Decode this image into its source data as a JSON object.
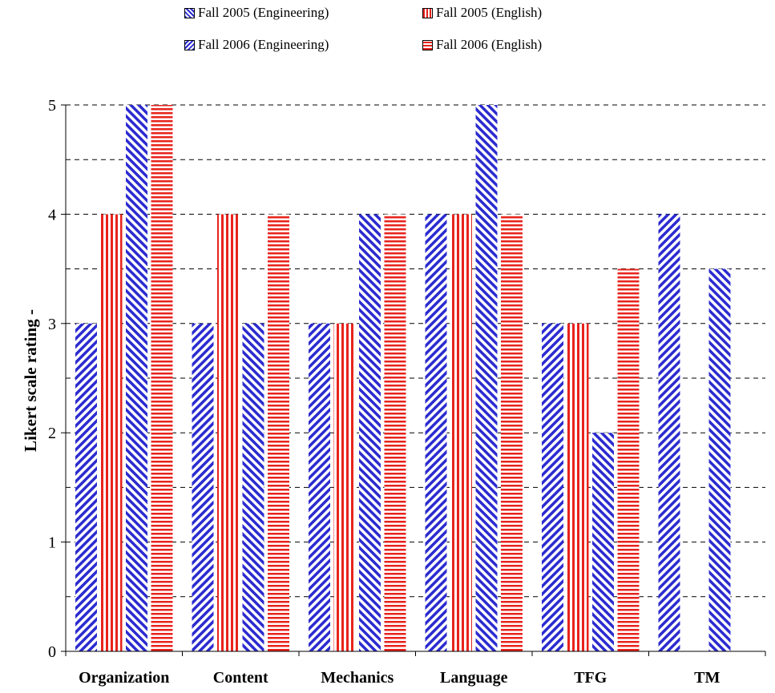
{
  "chart_data": {
    "type": "bar",
    "categories": [
      "Organization",
      "Content",
      "Mechanics",
      "Language",
      "TFG",
      "TM"
    ],
    "series": [
      {
        "name": "Fall 2005 (Engineering)",
        "values": [
          3,
          3,
          3,
          4,
          3,
          4
        ],
        "color": "#2b2bd0",
        "pattern": "diagonal-down"
      },
      {
        "name": "Fall 2005 (English)",
        "values": [
          4,
          4,
          3,
          4,
          3,
          null
        ],
        "color": "#e8231c",
        "pattern": "vertical"
      },
      {
        "name": "Fall 2006 (Engineering)",
        "values": [
          5,
          3,
          4,
          5,
          2,
          3.5
        ],
        "color": "#2b2bd0",
        "pattern": "diagonal-up"
      },
      {
        "name": "Fall 2006 (English)",
        "values": [
          5,
          4,
          4,
          4,
          3.5,
          null
        ],
        "color": "#e8231c",
        "pattern": "horizontal"
      }
    ],
    "title": "",
    "xlabel": "",
    "ylabel": "Likert scale rating -",
    "ylim": [
      0,
      5
    ],
    "yticks": [
      "0",
      "1",
      "2",
      "3",
      "4",
      "5"
    ],
    "grid": "dashed horizontal at every 0.5",
    "legend_position": "top"
  }
}
